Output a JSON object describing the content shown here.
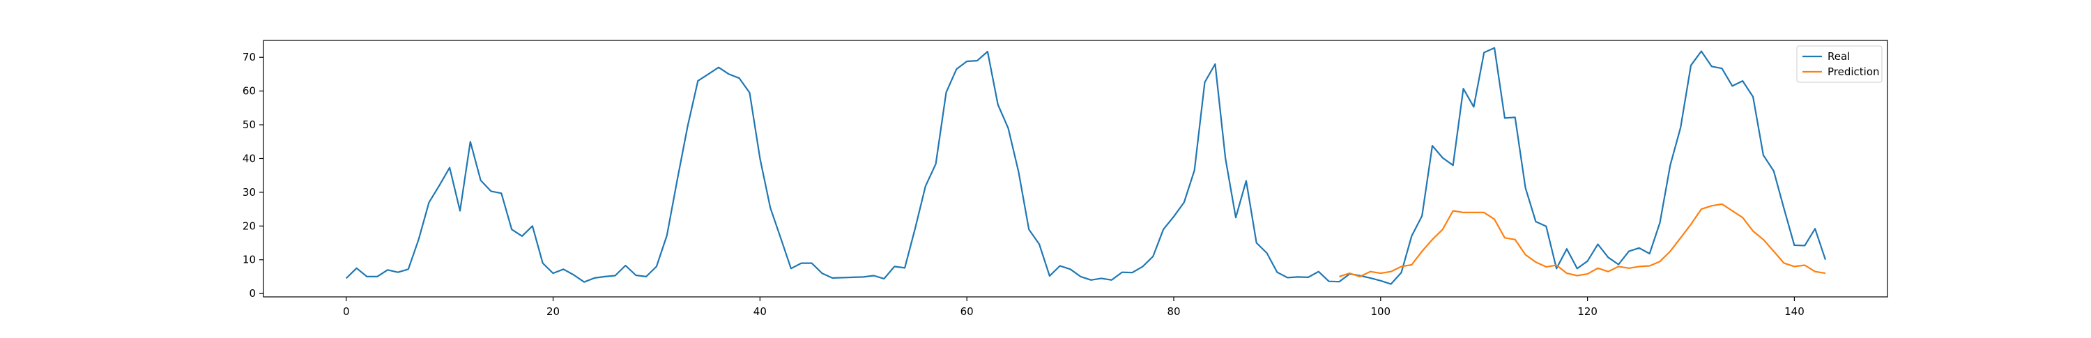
{
  "chart_data": {
    "type": "line",
    "title": "",
    "xlabel": "",
    "ylabel": "",
    "xlim": [
      -8,
      149
    ],
    "ylim": [
      -1,
      75
    ],
    "x_ticks": [
      0,
      20,
      40,
      60,
      80,
      100,
      120,
      140
    ],
    "y_ticks": [
      0,
      10,
      20,
      30,
      40,
      50,
      60,
      70
    ],
    "grid": false,
    "legend": {
      "placement": "top-right",
      "entries": [
        "Real",
        "Prediction"
      ]
    },
    "colors": {
      "Real": "#1f77b4",
      "Prediction": "#ff7f0e"
    },
    "series": [
      {
        "name": "Real",
        "x_start": 0,
        "values": [
          4.5,
          7.5,
          5,
          5,
          7,
          6.3,
          7.2,
          16,
          27,
          32,
          37.3,
          24.5,
          45,
          33.5,
          30.3,
          29.7,
          19,
          17,
          20,
          9,
          6,
          7.2,
          5.5,
          3.4,
          4.6,
          5,
          5.3,
          8.3,
          5.4,
          5,
          8,
          17.2,
          33.6,
          49.5,
          63,
          65,
          67,
          65,
          63.8,
          59.5,
          40,
          25.4,
          16.5,
          7.4,
          9,
          9,
          6,
          4.6,
          4.7,
          4.8,
          4.9,
          5.3,
          4.4,
          8,
          7.6,
          19.3,
          31.8,
          38.4,
          59.6,
          66.5,
          68.8,
          69,
          71.7,
          56,
          49,
          36,
          19,
          14.6,
          5.2,
          8.2,
          7.2,
          5,
          4,
          4.5,
          4,
          6.3,
          6.2,
          8,
          11,
          19,
          22.8,
          27,
          36.5,
          62.6,
          68,
          40,
          22.5,
          33.4,
          15,
          12,
          6.3,
          4.7,
          4.9,
          4.8,
          6.5,
          3.6,
          3.5,
          5.8,
          5.3,
          4.6,
          3.8,
          2.8,
          6.2,
          17,
          23,
          43.8,
          40.2,
          38,
          60.7,
          55.3,
          71.4,
          72.8,
          52,
          52.2,
          31.3,
          21.3,
          19.9,
          7.4,
          13.2,
          7.4,
          9.6,
          14.6,
          10.7,
          8.6,
          12.5,
          13.5,
          11.8,
          21,
          38,
          49.2,
          67.6,
          71.8,
          67.3,
          66.7,
          61.5,
          63,
          58.3,
          41,
          36.3,
          25.1,
          14.3,
          14.2,
          19.2,
          10
        ]
      },
      {
        "name": "Prediction",
        "x_start": 96,
        "values": [
          5,
          6,
          5,
          6.5,
          6,
          6.5,
          8,
          8.5,
          12.5,
          16,
          19,
          24.5,
          24,
          24,
          24,
          22,
          16.5,
          16,
          11.5,
          9.3,
          7.9,
          8.4,
          6,
          5.3,
          5.8,
          7.5,
          6.5,
          8,
          7.5,
          8,
          8.2,
          9.5,
          12.5,
          16.5,
          20.5,
          25,
          26,
          26.5,
          24.5,
          22.5,
          18.5,
          16,
          12.5,
          9,
          8,
          8.4,
          6.5,
          6
        ]
      }
    ]
  }
}
